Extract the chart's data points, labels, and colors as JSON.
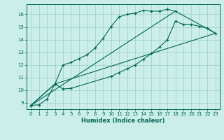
{
  "xlabel": "Humidex (Indice chaleur)",
  "bg_color": "#cceee8",
  "grid_color": "#99cccc",
  "line_color": "#006655",
  "xlim": [
    -0.5,
    23.5
  ],
  "ylim": [
    8.5,
    16.8
  ],
  "xticks": [
    0,
    1,
    2,
    3,
    4,
    5,
    6,
    7,
    8,
    9,
    10,
    11,
    12,
    13,
    14,
    15,
    16,
    17,
    18,
    19,
    20,
    21,
    22,
    23
  ],
  "yticks": [
    9,
    10,
    11,
    12,
    13,
    14,
    15,
    16
  ],
  "line1_x": [
    0,
    1,
    2,
    3,
    4,
    5,
    6,
    7,
    8,
    9,
    10,
    11,
    12,
    13,
    14,
    15,
    16,
    17,
    18
  ],
  "line1_y": [
    8.8,
    8.85,
    9.3,
    10.5,
    12.0,
    12.2,
    12.5,
    12.8,
    13.35,
    14.1,
    15.05,
    15.8,
    16.0,
    16.1,
    16.3,
    16.25,
    16.25,
    16.4,
    16.25
  ],
  "line2_x": [
    0,
    3,
    4,
    5,
    10,
    11,
    12,
    13,
    14,
    15,
    16,
    17,
    18,
    19,
    20,
    21,
    22,
    23
  ],
  "line2_y": [
    8.8,
    10.5,
    10.1,
    10.15,
    11.1,
    11.4,
    11.7,
    12.0,
    12.45,
    12.9,
    13.4,
    14.0,
    15.45,
    15.2,
    15.2,
    15.05,
    14.9,
    14.5
  ],
  "line3_x": [
    0,
    3,
    23
  ],
  "line3_y": [
    8.8,
    10.5,
    14.5
  ],
  "line4_x": [
    0,
    18,
    23
  ],
  "line4_y": [
    8.8,
    16.25,
    14.5
  ]
}
